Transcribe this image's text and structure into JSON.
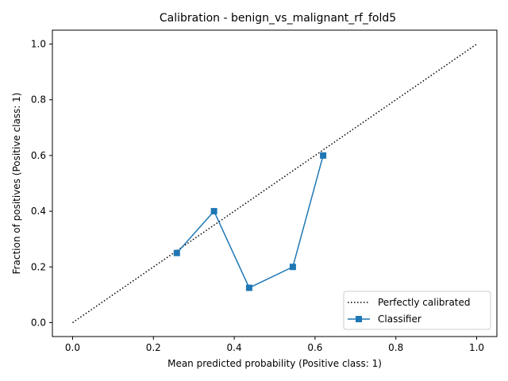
{
  "chart_data": {
    "type": "line",
    "title": "Calibration - benign_vs_malignant_rf_fold5",
    "xlabel": "Mean predicted probability (Positive class: 1)",
    "ylabel": "Fraction of positives (Positive class: 1)",
    "xlim": [
      -0.05,
      1.05
    ],
    "ylim": [
      -0.05,
      1.05
    ],
    "xticks": [
      "0.0",
      "0.2",
      "0.4",
      "0.6",
      "0.8",
      "1.0"
    ],
    "yticks": [
      "0.0",
      "0.2",
      "0.4",
      "0.6",
      "0.8",
      "1.0"
    ],
    "grid": false,
    "legend_position": "bottom-right",
    "series": [
      {
        "name": "Perfectly calibrated",
        "style": "dotted",
        "color": "#000000",
        "marker": "none",
        "x": [
          0.0,
          1.0
        ],
        "y": [
          0.0,
          1.0
        ]
      },
      {
        "name": "Classifier",
        "style": "solid",
        "color": "#1f77b4",
        "marker": "square",
        "x": [
          0.258,
          0.35,
          0.437,
          0.545,
          0.62
        ],
        "y": [
          0.25,
          0.4,
          0.125,
          0.2,
          0.6
        ]
      }
    ]
  }
}
